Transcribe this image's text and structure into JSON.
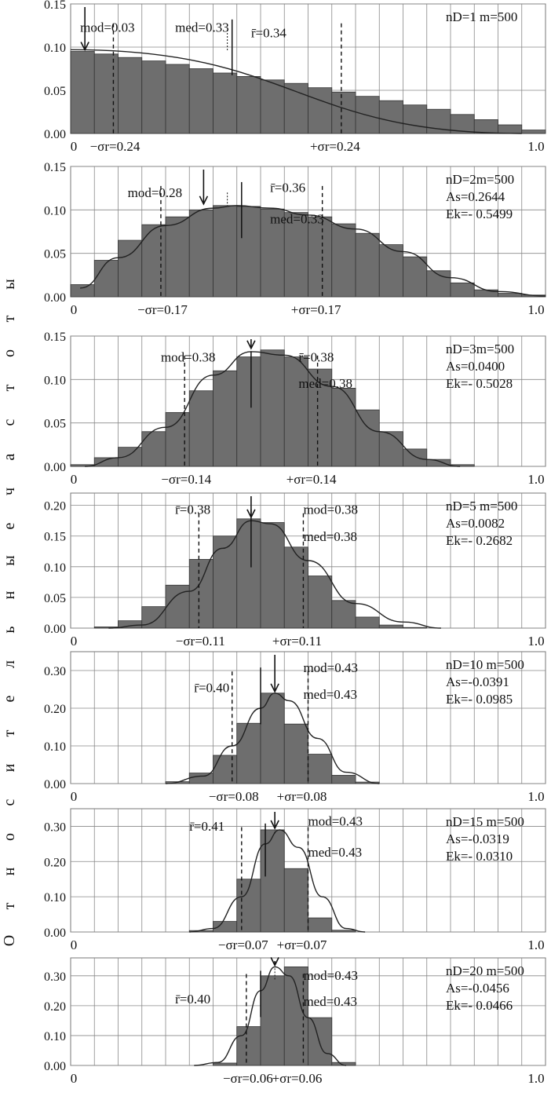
{
  "y_axis_label": "Относительные частоты",
  "chart_data": [
    {
      "type": "bar",
      "nD_label": "nD=1 m=500",
      "mod_label": "mod=0.03",
      "med_label": "med=0.33",
      "rbar_label": "r̄=0.34",
      "sigma_minus_label": "−σr=0.24",
      "sigma_plus_label": "+σr=0.24",
      "x_start_label": "0",
      "x_end_label": "1.0",
      "xlim": [
        0,
        1.0
      ],
      "ylim": [
        0,
        0.15
      ],
      "y_ticks": [
        "0.15",
        "0.10",
        "0.05",
        "0.00"
      ],
      "y_tick_values": [
        0.15,
        0.1,
        0.05,
        0.0
      ],
      "bin_width": 0.05,
      "values": [
        0.095,
        0.092,
        0.088,
        0.084,
        0.08,
        0.075,
        0.07,
        0.066,
        0.062,
        0.058,
        0.053,
        0.048,
        0.043,
        0.038,
        0.033,
        0.028,
        0.022,
        0.016,
        0.01,
        0.004
      ],
      "curve": [
        [
          0.0,
          0.097
        ],
        [
          0.95,
          0.0
        ]
      ],
      "mod": 0.03,
      "med": 0.33,
      "rbar": 0.34,
      "sigma_minus": 0.09,
      "sigma_plus": 0.57
    },
    {
      "type": "bar",
      "nD_label": "nD=2m=500",
      "as_label": "As=0.2644",
      "ek_label": "Ek=- 0.5499",
      "mod_label": "mod=0.28",
      "med_label": "med=0.33",
      "rbar_label": "r̄=0.36",
      "sigma_minus_label": "−σr=0.17",
      "sigma_plus_label": "+σr=0.17",
      "x_start_label": "0",
      "x_end_label": "1.0",
      "xlim": [
        0,
        1.0
      ],
      "ylim": [
        0,
        0.15
      ],
      "y_ticks": [
        "0.15",
        "0.10",
        "0.05",
        "0.00"
      ],
      "y_tick_values": [
        0.15,
        0.1,
        0.05,
        0.0
      ],
      "bin_width": 0.05,
      "values": [
        0.014,
        0.042,
        0.065,
        0.083,
        0.092,
        0.1,
        0.105,
        0.104,
        0.101,
        0.097,
        0.092,
        0.084,
        0.073,
        0.06,
        0.046,
        0.03,
        0.016,
        0.008,
        0.004,
        0.002
      ],
      "curve": [
        [
          0.02,
          0.01
        ],
        [
          0.1,
          0.045
        ],
        [
          0.2,
          0.082
        ],
        [
          0.3,
          0.102
        ],
        [
          0.35,
          0.105
        ],
        [
          0.42,
          0.102
        ],
        [
          0.5,
          0.094
        ],
        [
          0.6,
          0.078
        ],
        [
          0.7,
          0.052
        ],
        [
          0.8,
          0.022
        ],
        [
          0.9,
          0.006
        ],
        [
          1.0,
          0.001
        ]
      ],
      "mod": 0.28,
      "med": 0.33,
      "rbar": 0.36,
      "sigma_minus": 0.19,
      "sigma_plus": 0.53
    },
    {
      "type": "bar",
      "nD_label": "nD=3m=500",
      "as_label": "As=0.0400",
      "ek_label": "Ek=- 0.5028",
      "mod_label": "mod=0.38",
      "med_label": "med=0.38",
      "rbar_label": "r̄=0.38",
      "sigma_minus_label": "−σr=0.14",
      "sigma_plus_label": "+σr=0.14",
      "x_start_label": "0",
      "x_end_label": "1.0",
      "xlim": [
        0,
        1.0
      ],
      "ylim": [
        0,
        0.15
      ],
      "y_ticks": [
        "0.15",
        "0.10",
        "0.05",
        "0.00"
      ],
      "y_tick_values": [
        0.15,
        0.1,
        0.05,
        0.0
      ],
      "bin_width": 0.05,
      "values": [
        0.002,
        0.01,
        0.022,
        0.04,
        0.062,
        0.087,
        0.11,
        0.126,
        0.134,
        0.126,
        0.112,
        0.09,
        0.065,
        0.04,
        0.02,
        0.008,
        0.002,
        0.0,
        0.0,
        0.0
      ],
      "curve": [
        [
          0.03,
          0.0
        ],
        [
          0.1,
          0.01
        ],
        [
          0.2,
          0.045
        ],
        [
          0.3,
          0.105
        ],
        [
          0.38,
          0.132
        ],
        [
          0.45,
          0.128
        ],
        [
          0.55,
          0.092
        ],
        [
          0.65,
          0.04
        ],
        [
          0.75,
          0.008
        ],
        [
          0.82,
          0.0
        ]
      ],
      "mod": 0.38,
      "med": 0.38,
      "rbar": 0.38,
      "sigma_minus": 0.24,
      "sigma_plus": 0.52
    },
    {
      "type": "bar",
      "nD_label": "nD=5 m=500",
      "as_label": "As=0.0082",
      "ek_label": "Ek=- 0.2682",
      "mod_label": "mod=0.38",
      "med_label": "med=0.38",
      "rbar_label": "r̄=0.38",
      "sigma_minus_label": "−σr=0.11",
      "sigma_plus_label": "+σr=0.11",
      "x_start_label": "0",
      "x_end_label": "1.0",
      "xlim": [
        0,
        1.0
      ],
      "ylim": [
        0,
        0.22
      ],
      "y_ticks": [
        "0.20",
        "0.15",
        "0.10",
        "0.05",
        "0.00"
      ],
      "y_tick_values": [
        0.2,
        0.15,
        0.1,
        0.05,
        0.0
      ],
      "bin_width": 0.05,
      "values": [
        0.0,
        0.002,
        0.012,
        0.035,
        0.07,
        0.112,
        0.15,
        0.178,
        0.172,
        0.132,
        0.085,
        0.045,
        0.018,
        0.005,
        0.001,
        0.0,
        0.0,
        0.0,
        0.0,
        0.0
      ],
      "curve": [
        [
          0.08,
          0.0
        ],
        [
          0.15,
          0.005
        ],
        [
          0.25,
          0.06
        ],
        [
          0.32,
          0.13
        ],
        [
          0.38,
          0.175
        ],
        [
          0.42,
          0.17
        ],
        [
          0.5,
          0.11
        ],
        [
          0.6,
          0.04
        ],
        [
          0.7,
          0.01
        ],
        [
          0.78,
          0.0
        ]
      ],
      "mod": 0.38,
      "med": 0.38,
      "rbar": 0.38,
      "sigma_minus": 0.27,
      "sigma_plus": 0.49
    },
    {
      "type": "bar",
      "nD_label": "nD=10 m=500",
      "as_label": "As=-0.0391",
      "ek_label": "Ek=- 0.0985",
      "mod_label": "mod=0.43",
      "med_label": "med=0.43",
      "rbar_label": "r̄=0.40",
      "sigma_minus_label": "−σr=0.08",
      "sigma_plus_label": "+σr=0.08",
      "x_start_label": "0",
      "x_end_label": "1.0",
      "xlim": [
        0,
        1.0
      ],
      "ylim": [
        0,
        0.35
      ],
      "y_ticks": [
        "0.30",
        "0.20",
        "0.10",
        "0.00"
      ],
      "y_tick_values": [
        0.3,
        0.2,
        0.1,
        0.0
      ],
      "bin_width": 0.05,
      "values": [
        0.0,
        0.0,
        0.0,
        0.0,
        0.005,
        0.028,
        0.075,
        0.16,
        0.24,
        0.158,
        0.078,
        0.022,
        0.004,
        0.0,
        0.0,
        0.0,
        0.0,
        0.0,
        0.0,
        0.0
      ],
      "curve": [
        [
          0.2,
          0.0
        ],
        [
          0.28,
          0.02
        ],
        [
          0.34,
          0.1
        ],
        [
          0.4,
          0.2
        ],
        [
          0.43,
          0.24
        ],
        [
          0.46,
          0.22
        ],
        [
          0.52,
          0.12
        ],
        [
          0.58,
          0.03
        ],
        [
          0.65,
          0.0
        ]
      ],
      "mod": 0.43,
      "med": 0.43,
      "rbar": 0.4,
      "sigma_minus": 0.34,
      "sigma_plus": 0.5
    },
    {
      "type": "bar",
      "nD_label": "nD=15 m=500",
      "as_label": "As=-0.0319",
      "ek_label": "Ek=- 0.0310",
      "mod_label": "mod=0.43",
      "med_label": "med=0.43",
      "rbar_label": "r̄=0.41",
      "sigma_minus_label": "−σr=0.07",
      "sigma_plus_label": "+σr=0.07",
      "x_start_label": "0",
      "x_end_label": "1.0",
      "xlim": [
        0,
        1.0
      ],
      "ylim": [
        0,
        0.35
      ],
      "y_ticks": [
        "0.30",
        "0.20",
        "0.10",
        "0.00"
      ],
      "y_tick_values": [
        0.3,
        0.2,
        0.1,
        0.0
      ],
      "bin_width": 0.05,
      "values": [
        0.0,
        0.0,
        0.0,
        0.0,
        0.0,
        0.004,
        0.03,
        0.15,
        0.29,
        0.18,
        0.04,
        0.005,
        0.0,
        0.0,
        0.0,
        0.0,
        0.0,
        0.0,
        0.0,
        0.0
      ],
      "curve": [
        [
          0.25,
          0.0
        ],
        [
          0.3,
          0.01
        ],
        [
          0.36,
          0.1
        ],
        [
          0.41,
          0.25
        ],
        [
          0.44,
          0.29
        ],
        [
          0.48,
          0.24
        ],
        [
          0.53,
          0.1
        ],
        [
          0.58,
          0.01
        ],
        [
          0.62,
          0.0
        ]
      ],
      "mod": 0.43,
      "med": 0.43,
      "rbar": 0.41,
      "sigma_minus": 0.36,
      "sigma_plus": 0.5
    },
    {
      "type": "bar",
      "nD_label": "nD=20 m=500",
      "as_label": "As=-0.0456",
      "ek_label": "Ek=- 0.0466",
      "mod_label": "mod=0.43",
      "med_label": "med=0.43",
      "rbar_label": "r̄=0.40",
      "sigma_minus_label": "−σr=0.06",
      "sigma_plus_label": "+σr=0.06",
      "x_start_label": "0",
      "x_end_label": "1.0",
      "xlim": [
        0,
        1.0
      ],
      "ylim": [
        0,
        0.36
      ],
      "y_ticks": [
        "0.30",
        "0.20",
        "0.10",
        "0.00"
      ],
      "y_tick_values": [
        0.3,
        0.2,
        0.1,
        0.0
      ],
      "bin_width": 0.05,
      "values": [
        0.0,
        0.0,
        0.0,
        0.0,
        0.0,
        0.0,
        0.008,
        0.13,
        0.3,
        0.33,
        0.16,
        0.01,
        0.0,
        0.0,
        0.0,
        0.0,
        0.0,
        0.0,
        0.0,
        0.0
      ],
      "curve": [
        [
          0.26,
          0.0
        ],
        [
          0.31,
          0.01
        ],
        [
          0.36,
          0.1
        ],
        [
          0.4,
          0.25
        ],
        [
          0.43,
          0.33
        ],
        [
          0.46,
          0.3
        ],
        [
          0.5,
          0.16
        ],
        [
          0.54,
          0.04
        ],
        [
          0.58,
          0.0
        ]
      ],
      "mod": 0.43,
      "med": 0.43,
      "rbar": 0.4,
      "sigma_minus": 0.37,
      "sigma_plus": 0.49
    }
  ]
}
